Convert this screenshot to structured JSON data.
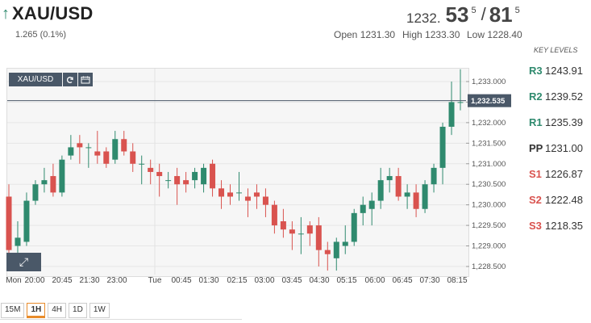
{
  "header": {
    "symbol": "XAU/USD",
    "change": "1.265 (0.1%)",
    "bid_int": "1232.",
    "bid_big": "53",
    "bid_sup": "5",
    "sep": "/",
    "ask_big": "81",
    "ask_sup": "5",
    "open": "Open 1231.30",
    "high": "High 1233.30",
    "low": "Low 1228.40",
    "colors": {
      "up": "#2f8a6e",
      "down": "#d9534f"
    }
  },
  "toolbar": {
    "symbol_label": "XAU/USD",
    "icons": [
      "refresh-icon",
      "calendar-icon"
    ]
  },
  "key_levels": {
    "title": "KEY LEVELS",
    "items": [
      {
        "name": "R3",
        "value": "1243.91"
      },
      {
        "name": "R2",
        "value": "1239.52"
      },
      {
        "name": "R1",
        "value": "1235.39"
      },
      {
        "name": "PP",
        "value": "1231.00"
      },
      {
        "name": "S1",
        "value": "1226.87"
      },
      {
        "name": "S2",
        "value": "1222.48"
      },
      {
        "name": "S3",
        "value": "1218.35"
      }
    ]
  },
  "timeframes": [
    "15M",
    "1H",
    "4H",
    "1D",
    "1W"
  ],
  "active_timeframe": "1H",
  "chart_data": {
    "type": "candlestick",
    "current_price_label": "1,232.535",
    "current_price": 1232.535,
    "ylim": [
      1228.3,
      1233.3
    ],
    "y_ticks": [
      {
        "v": 1233.0,
        "label": "1,233.000"
      },
      {
        "v": 1232.5,
        "label": "1,232.500"
      },
      {
        "v": 1232.0,
        "label": "1,232.000"
      },
      {
        "v": 1231.5,
        "label": "1,231.500"
      },
      {
        "v": 1231.0,
        "label": "1,231.000"
      },
      {
        "v": 1230.5,
        "label": "1,230.500"
      },
      {
        "v": 1230.0,
        "label": "1,230.000"
      },
      {
        "v": 1229.5,
        "label": "1,229.500"
      },
      {
        "v": 1229.0,
        "label": "1,229.000"
      },
      {
        "v": 1228.5,
        "label": "1,228.500"
      }
    ],
    "x_labels": [
      "Mon",
      "20:00",
      "20:45",
      "21:30",
      "23:00",
      "Tue",
      "00:45",
      "01:30",
      "02:15",
      "03:00",
      "03:45",
      "04:30",
      "05:15",
      "06:00",
      "06:45",
      "07:30",
      "08:15"
    ],
    "candles": [
      {
        "o": 1230.2,
        "h": 1230.5,
        "l": 1228.5,
        "c": 1228.9
      },
      {
        "o": 1229.0,
        "h": 1229.6,
        "l": 1228.8,
        "c": 1229.2
      },
      {
        "o": 1229.1,
        "h": 1230.3,
        "l": 1229.0,
        "c": 1230.1
      },
      {
        "o": 1230.1,
        "h": 1230.6,
        "l": 1230.0,
        "c": 1230.5
      },
      {
        "o": 1230.5,
        "h": 1230.9,
        "l": 1230.3,
        "c": 1230.6
      },
      {
        "o": 1230.7,
        "h": 1231.0,
        "l": 1230.2,
        "c": 1230.3
      },
      {
        "o": 1230.3,
        "h": 1231.2,
        "l": 1230.2,
        "c": 1231.1
      },
      {
        "o": 1231.2,
        "h": 1231.7,
        "l": 1231.1,
        "c": 1231.4
      },
      {
        "o": 1231.5,
        "h": 1231.7,
        "l": 1231.0,
        "c": 1231.4
      },
      {
        "o": 1231.4,
        "h": 1231.5,
        "l": 1230.9,
        "c": 1231.4
      },
      {
        "o": 1231.3,
        "h": 1231.8,
        "l": 1231.0,
        "c": 1231.2
      },
      {
        "o": 1231.3,
        "h": 1231.4,
        "l": 1230.9,
        "c": 1231.0
      },
      {
        "o": 1231.1,
        "h": 1231.8,
        "l": 1231.0,
        "c": 1231.6
      },
      {
        "o": 1231.6,
        "h": 1231.8,
        "l": 1231.2,
        "c": 1231.3
      },
      {
        "o": 1231.3,
        "h": 1231.5,
        "l": 1230.8,
        "c": 1231.0
      },
      {
        "o": 1231.0,
        "h": 1231.2,
        "l": 1230.5,
        "c": 1231.0
      },
      {
        "o": 1230.9,
        "h": 1231.1,
        "l": 1230.5,
        "c": 1230.8
      },
      {
        "o": 1230.8,
        "h": 1231.0,
        "l": 1230.2,
        "c": 1230.7
      },
      {
        "o": 1230.6,
        "h": 1230.8,
        "l": 1230.4,
        "c": 1230.6
      },
      {
        "o": 1230.7,
        "h": 1230.9,
        "l": 1230.0,
        "c": 1230.5
      },
      {
        "o": 1230.6,
        "h": 1230.8,
        "l": 1230.3,
        "c": 1230.5
      },
      {
        "o": 1230.6,
        "h": 1230.9,
        "l": 1230.4,
        "c": 1230.8
      },
      {
        "o": 1230.5,
        "h": 1231.0,
        "l": 1230.3,
        "c": 1230.9
      },
      {
        "o": 1231.0,
        "h": 1231.1,
        "l": 1230.2,
        "c": 1230.4
      },
      {
        "o": 1230.4,
        "h": 1230.6,
        "l": 1229.9,
        "c": 1230.2
      },
      {
        "o": 1230.3,
        "h": 1230.5,
        "l": 1230.0,
        "c": 1230.2
      },
      {
        "o": 1230.3,
        "h": 1230.8,
        "l": 1230.1,
        "c": 1230.3
      },
      {
        "o": 1230.2,
        "h": 1230.4,
        "l": 1229.7,
        "c": 1230.1
      },
      {
        "o": 1230.3,
        "h": 1230.5,
        "l": 1229.9,
        "c": 1230.2
      },
      {
        "o": 1230.2,
        "h": 1230.4,
        "l": 1229.7,
        "c": 1230.0
      },
      {
        "o": 1230.0,
        "h": 1230.1,
        "l": 1229.3,
        "c": 1229.5
      },
      {
        "o": 1229.6,
        "h": 1229.9,
        "l": 1229.2,
        "c": 1229.4
      },
      {
        "o": 1229.4,
        "h": 1229.6,
        "l": 1228.9,
        "c": 1229.3
      },
      {
        "o": 1229.3,
        "h": 1229.7,
        "l": 1228.8,
        "c": 1229.3
      },
      {
        "o": 1229.5,
        "h": 1229.6,
        "l": 1229.0,
        "c": 1229.3
      },
      {
        "o": 1229.5,
        "h": 1229.7,
        "l": 1228.5,
        "c": 1228.9
      },
      {
        "o": 1228.9,
        "h": 1229.1,
        "l": 1228.4,
        "c": 1228.8
      },
      {
        "o": 1228.7,
        "h": 1229.2,
        "l": 1228.4,
        "c": 1229.1
      },
      {
        "o": 1229.0,
        "h": 1229.5,
        "l": 1228.8,
        "c": 1229.1
      },
      {
        "o": 1229.1,
        "h": 1229.9,
        "l": 1229.0,
        "c": 1229.8
      },
      {
        "o": 1229.8,
        "h": 1230.2,
        "l": 1229.5,
        "c": 1230.0
      },
      {
        "o": 1229.9,
        "h": 1230.3,
        "l": 1229.5,
        "c": 1230.1
      },
      {
        "o": 1230.1,
        "h": 1230.9,
        "l": 1229.9,
        "c": 1230.6
      },
      {
        "o": 1230.6,
        "h": 1230.9,
        "l": 1230.3,
        "c": 1230.7
      },
      {
        "o": 1230.7,
        "h": 1230.9,
        "l": 1230.1,
        "c": 1230.2
      },
      {
        "o": 1230.2,
        "h": 1230.5,
        "l": 1229.9,
        "c": 1230.3
      },
      {
        "o": 1230.3,
        "h": 1230.5,
        "l": 1229.7,
        "c": 1229.9
      },
      {
        "o": 1229.9,
        "h": 1230.6,
        "l": 1229.8,
        "c": 1230.5
      },
      {
        "o": 1230.5,
        "h": 1231.0,
        "l": 1230.3,
        "c": 1230.9
      },
      {
        "o": 1230.9,
        "h": 1232.0,
        "l": 1230.5,
        "c": 1231.9
      },
      {
        "o": 1231.9,
        "h": 1233.0,
        "l": 1231.7,
        "c": 1232.5
      },
      {
        "o": 1232.5,
        "h": 1233.3,
        "l": 1232.3,
        "c": 1232.5
      }
    ]
  }
}
